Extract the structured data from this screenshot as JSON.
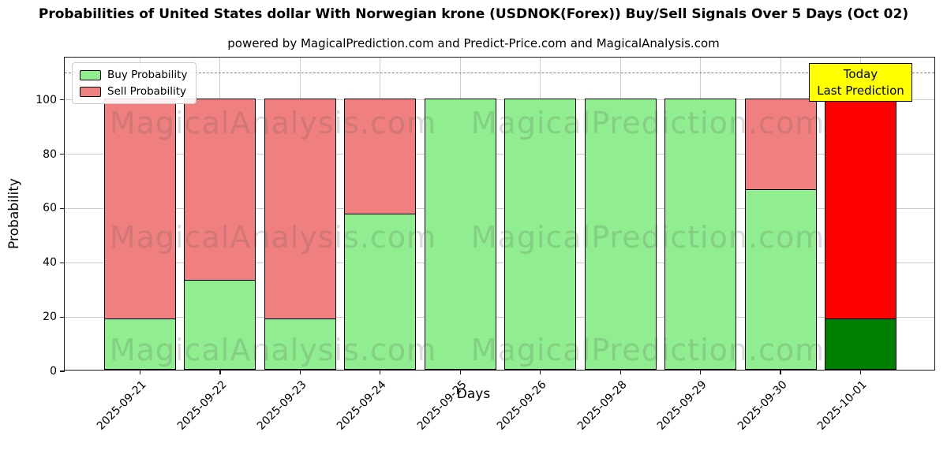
{
  "title": "Probabilities of United States dollar With Norwegian krone (USDNOK(Forex)) Buy/Sell Signals Over 5 Days (Oct 02)",
  "subtitle": "powered by MagicalPrediction.com and Predict-Price.com and MagicalAnalysis.com",
  "annotation": {
    "line1": "Today",
    "line2": "Last Prediction",
    "bg_color": "#ffff00"
  },
  "watermarks": {
    "left_text": "MagicalAnalysis.com",
    "right_text": "MagicalPrediction.com"
  },
  "legend": {
    "items": [
      {
        "label": "Buy Probability",
        "color": "#90ee90"
      },
      {
        "label": "Sell Probability",
        "color": "#f08080"
      }
    ]
  },
  "chart_data": {
    "type": "bar",
    "stacked": true,
    "title": "Probabilities of United States dollar With Norwegian krone (USDNOK(Forex)) Buy/Sell Signals Over 5 Days (Oct 02)",
    "xlabel": "Days",
    "ylabel": "Probability",
    "categories": [
      "2025-09-21",
      "2025-09-22",
      "2025-09-23",
      "2025-09-24",
      "2025-09-25",
      "2025-09-26",
      "2025-09-28",
      "2025-09-29",
      "2025-09-30",
      "2025-10-01"
    ],
    "series": [
      {
        "name": "Buy Probability",
        "color": "#90ee90",
        "today_color": "#008000",
        "values": [
          19,
          33.33,
          19,
          57.7,
          100,
          100,
          100,
          100,
          66.67,
          19
        ]
      },
      {
        "name": "Sell Probability",
        "color": "#f08080",
        "today_color": "#ff0000",
        "values": [
          81,
          66.67,
          81,
          42.3,
          0,
          0,
          0,
          0,
          33.33,
          81
        ]
      }
    ],
    "today_index": 9,
    "yticks": [
      0,
      20,
      40,
      60,
      80,
      100
    ],
    "ylim": [
      0,
      115.6
    ],
    "dashed_line_y": 110,
    "grid": true,
    "legend_position": "upper left"
  }
}
